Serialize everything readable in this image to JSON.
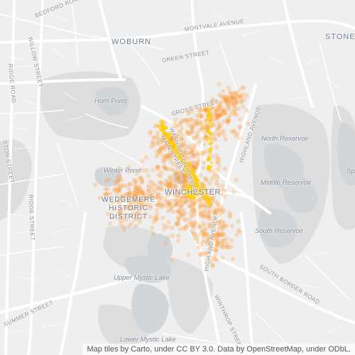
{
  "map": {
    "labels": {
      "woburn": "WOBURN",
      "winchester": "WINCHESTER",
      "stoneham": "STONEI",
      "wedgemere_line1": "WEDGEMERE",
      "wedgemere_line2": "HISTORIC",
      "wedgemere_line3": "DISTRICT",
      "horn_pond": "Horn Pond",
      "winter_pond": "Winter Pond",
      "north_reservoir": "North Reservoir",
      "middle_reservoir": "Middle Reservoir",
      "south_reservoir": "South Reservoir",
      "upper_mystic_lake": "Upper Mystic Lake",
      "lower_mystic_lake": "Lower Mystic Lake",
      "right_edge_water": "Sp",
      "montvale_avenue": "MONTVALE AVENUE",
      "bedford_road": "BEDFORD ROAD",
      "willow_street": "WILLOW STREET",
      "green_street": "GREEN STREET",
      "ridge_road": "RIDGE ROAD",
      "washington_street": "WASHINGTON STREET",
      "ridge_street": "RIDGE STREET",
      "cross_street": "CROSS STREET",
      "highland_avenue": "HIGHLAND AVENUE",
      "main_street": "MAIN STREET",
      "high_and_avenue": "HIGH AND AVENUE",
      "winthrop_street": "WINTHROP STREET",
      "south_border_road": "SOUTH BORDER ROAD",
      "summer_street": "SUMMER STREET",
      "edge_street": "STON STREET"
    },
    "attribution": "Map tiles by Carto, under CC BY 3.0. Data by OpenStreetMap, under ODbL.",
    "colors": {
      "background": "#f0f0f0",
      "park": "#dcdcdc",
      "water": "#d4d7da",
      "road": "#ffffff",
      "point": "#ff8c1a",
      "hotspot": "#ffcc00"
    }
  }
}
